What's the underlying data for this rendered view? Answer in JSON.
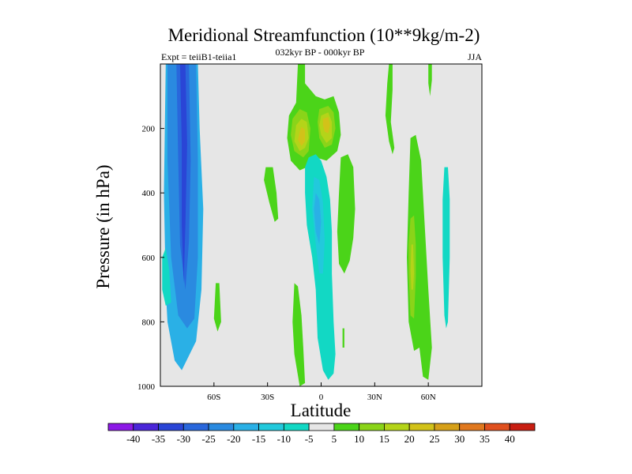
{
  "chart_data": {
    "type": "contour",
    "title": "Meridional Streamfunction (10**9kg/m-2)",
    "subtitle": "032kyr BP - 000kyr BP",
    "left_label": "Expt = teiiB1-teiia1",
    "right_label": "JJA",
    "xlabel": "Latitude",
    "ylabel": "Pressure (in hPa)",
    "xlim": [
      -90,
      90
    ],
    "ylim": [
      1000,
      0
    ],
    "x_ticks": [
      {
        "value": -60,
        "label": "60S"
      },
      {
        "value": -30,
        "label": "30S"
      },
      {
        "value": 0,
        "label": "0"
      },
      {
        "value": 30,
        "label": "30N"
      },
      {
        "value": 60,
        "label": "60N"
      }
    ],
    "y_ticks": [
      {
        "value": 200,
        "label": "200"
      },
      {
        "value": 400,
        "label": "400"
      },
      {
        "value": 600,
        "label": "600"
      },
      {
        "value": 800,
        "label": "800"
      },
      {
        "value": 1000,
        "label": "1000"
      }
    ],
    "colorbar": {
      "levels": [
        "-40",
        "-35",
        "-30",
        "-25",
        "-20",
        "-15",
        "-10",
        "-5",
        "5",
        "10",
        "15",
        "20",
        "25",
        "30",
        "35",
        "40"
      ],
      "colors": [
        "#8c19e6",
        "#4b26d9",
        "#2a45d6",
        "#2967dc",
        "#2a8ae0",
        "#2ab0e6",
        "#22c9dc",
        "#12d8c4",
        "#e6e6e6",
        "#4bd419",
        "#8ad419",
        "#b4d419",
        "#d2c219",
        "#d6a019",
        "#e0781e",
        "#e0501e",
        "#c81e12"
      ]
    },
    "regions": [
      {
        "level": -15,
        "points": [
          [
            -87,
            0
          ],
          [
            -69,
            0
          ],
          [
            -68,
            200
          ],
          [
            -66,
            450
          ],
          [
            -67,
            700
          ],
          [
            -70,
            860
          ],
          [
            -78,
            950
          ],
          [
            -82,
            920
          ],
          [
            -86,
            800
          ],
          [
            -87,
            700
          ],
          [
            -88,
            400
          ]
        ]
      },
      {
        "level": -20,
        "points": [
          [
            -86,
            0
          ],
          [
            -70,
            0
          ],
          [
            -69,
            300
          ],
          [
            -69,
            600
          ],
          [
            -71,
            790
          ],
          [
            -75,
            820
          ],
          [
            -80,
            780
          ],
          [
            -84,
            600
          ],
          [
            -86,
            300
          ]
        ]
      },
      {
        "level": -25,
        "points": [
          [
            -81,
            0
          ],
          [
            -74,
            0
          ],
          [
            -73,
            300
          ],
          [
            -74,
            550
          ],
          [
            -76,
            700
          ],
          [
            -79,
            560
          ],
          [
            -80,
            300
          ]
        ]
      },
      {
        "level": -30,
        "points": [
          [
            -79,
            0
          ],
          [
            -76,
            0
          ],
          [
            -75,
            250
          ],
          [
            -76,
            500
          ],
          [
            -77,
            680
          ],
          [
            -78,
            500
          ],
          [
            -78,
            250
          ]
        ]
      },
      {
        "level": -5,
        "points": [
          [
            -89,
            600
          ],
          [
            -87,
            570
          ],
          [
            -85,
            640
          ],
          [
            -84,
            740
          ],
          [
            -87,
            750
          ],
          [
            -89,
            700
          ]
        ]
      },
      {
        "level": 5,
        "points": [
          [
            -59,
            680
          ],
          [
            -57,
            680
          ],
          [
            -56,
            800
          ],
          [
            -58,
            830
          ],
          [
            -60,
            790
          ]
        ]
      },
      {
        "level": 5,
        "points": [
          [
            -31,
            320
          ],
          [
            -27,
            320
          ],
          [
            -25,
            400
          ],
          [
            -24,
            480
          ],
          [
            -26,
            490
          ],
          [
            -29,
            430
          ],
          [
            -32,
            360
          ]
        ]
      },
      {
        "level": 5,
        "points": [
          [
            -13,
            0
          ],
          [
            -9,
            0
          ],
          [
            -9,
            60
          ],
          [
            -3,
            100
          ],
          [
            2,
            110
          ],
          [
            7,
            100
          ],
          [
            10,
            150
          ],
          [
            11,
            220
          ],
          [
            9,
            270
          ],
          [
            3,
            300
          ],
          [
            -3,
            290
          ],
          [
            -8,
            320
          ],
          [
            -12,
            330
          ],
          [
            -17,
            300
          ],
          [
            -19,
            230
          ],
          [
            -18,
            160
          ],
          [
            -14,
            120
          ]
        ]
      },
      {
        "level": 10,
        "points": [
          [
            -12,
            140
          ],
          [
            -8,
            150
          ],
          [
            -6,
            200
          ],
          [
            -7,
            270
          ],
          [
            -10,
            290
          ],
          [
            -15,
            270
          ],
          [
            -17,
            220
          ],
          [
            -16,
            170
          ]
        ]
      },
      {
        "level": 15,
        "points": [
          [
            -11,
            170
          ],
          [
            -8,
            180
          ],
          [
            -7,
            230
          ],
          [
            -9,
            260
          ],
          [
            -12,
            270
          ],
          [
            -15,
            240
          ],
          [
            -14,
            190
          ]
        ]
      },
      {
        "level": 20,
        "points": [
          [
            -11,
            195
          ],
          [
            -9,
            205
          ],
          [
            -9,
            240
          ],
          [
            -11,
            255
          ],
          [
            -13,
            235
          ],
          [
            -12,
            210
          ]
        ]
      },
      {
        "level": 10,
        "points": [
          [
            -1,
            140
          ],
          [
            4,
            130
          ],
          [
            7,
            150
          ],
          [
            8,
            200
          ],
          [
            6,
            250
          ],
          [
            2,
            260
          ],
          [
            -1,
            230
          ],
          [
            -2,
            180
          ]
        ]
      },
      {
        "level": 15,
        "points": [
          [
            0,
            160
          ],
          [
            4,
            150
          ],
          [
            6,
            180
          ],
          [
            6,
            230
          ],
          [
            3,
            245
          ],
          [
            0,
            220
          ],
          [
            -1,
            190
          ]
        ]
      },
      {
        "level": 20,
        "points": [
          [
            1,
            170
          ],
          [
            4,
            165
          ],
          [
            5,
            190
          ],
          [
            4,
            215
          ],
          [
            2,
            210
          ],
          [
            1,
            190
          ]
        ]
      },
      {
        "level": 5,
        "points": [
          [
            11,
            290
          ],
          [
            15,
            280
          ],
          [
            18,
            320
          ],
          [
            19,
            450
          ],
          [
            18,
            540
          ],
          [
            16,
            610
          ],
          [
            13,
            650
          ],
          [
            10,
            620
          ],
          [
            9,
            520
          ],
          [
            10,
            400
          ]
        ]
      },
      {
        "level": 5,
        "points": [
          [
            -15,
            680
          ],
          [
            -13,
            690
          ],
          [
            -11,
            780
          ],
          [
            -10,
            880
          ],
          [
            -9,
            990
          ],
          [
            -12,
            1000
          ],
          [
            -15,
            900
          ],
          [
            -16,
            800
          ]
        ]
      },
      {
        "level": 5,
        "points": [
          [
            12,
            820
          ],
          [
            13,
            820
          ],
          [
            13,
            880
          ],
          [
            12,
            880
          ]
        ]
      },
      {
        "level": -5,
        "points": [
          [
            -7,
            290
          ],
          [
            -3,
            280
          ],
          [
            0,
            300
          ],
          [
            3,
            350
          ],
          [
            5,
            420
          ],
          [
            6,
            520
          ],
          [
            6,
            650
          ],
          [
            7,
            800
          ],
          [
            8,
            900
          ],
          [
            7,
            960
          ],
          [
            4,
            980
          ],
          [
            1,
            950
          ],
          [
            -2,
            850
          ],
          [
            -3,
            700
          ],
          [
            -5,
            600
          ],
          [
            -8,
            500
          ],
          [
            -9,
            400
          ],
          [
            -9,
            320
          ]
        ]
      },
      {
        "level": -10,
        "points": [
          [
            -4,
            350
          ],
          [
            -1,
            360
          ],
          [
            1,
            430
          ],
          [
            2,
            550
          ],
          [
            1,
            650
          ],
          [
            -1,
            650
          ],
          [
            -3,
            560
          ],
          [
            -5,
            450
          ]
        ]
      },
      {
        "level": -15,
        "points": [
          [
            -3,
            400
          ],
          [
            -1,
            420
          ],
          [
            0,
            490
          ],
          [
            -1,
            560
          ],
          [
            -3,
            520
          ],
          [
            -4,
            450
          ]
        ]
      },
      {
        "level": 5,
        "points": [
          [
            38,
            0
          ],
          [
            40,
            0
          ],
          [
            40,
            80
          ],
          [
            39,
            180
          ],
          [
            41,
            260
          ],
          [
            40,
            280
          ],
          [
            38,
            240
          ],
          [
            36,
            160
          ],
          [
            37,
            60
          ]
        ]
      },
      {
        "level": 5,
        "points": [
          [
            50,
            230
          ],
          [
            53,
            220
          ],
          [
            56,
            300
          ],
          [
            58,
            500
          ],
          [
            60,
            700
          ],
          [
            62,
            880
          ],
          [
            60,
            980
          ],
          [
            57,
            970
          ],
          [
            55,
            880
          ],
          [
            52,
            890
          ],
          [
            49,
            800
          ],
          [
            48,
            600
          ],
          [
            49,
            400
          ]
        ]
      },
      {
        "level": 10,
        "points": [
          [
            50,
            480
          ],
          [
            52,
            470
          ],
          [
            53,
            560
          ],
          [
            53,
            660
          ],
          [
            52,
            790
          ],
          [
            50,
            780
          ],
          [
            49,
            650
          ],
          [
            49,
            560
          ]
        ]
      },
      {
        "level": 15,
        "points": [
          [
            50.5,
            560
          ],
          [
            51.5,
            560
          ],
          [
            52,
            650
          ],
          [
            51.5,
            700
          ],
          [
            50.5,
            700
          ],
          [
            50,
            640
          ]
        ]
      },
      {
        "level": 5,
        "points": [
          [
            60,
            0
          ],
          [
            62,
            0
          ],
          [
            62,
            50
          ],
          [
            61,
            100
          ],
          [
            60,
            60
          ]
        ]
      },
      {
        "level": -5,
        "points": [
          [
            69,
            320
          ],
          [
            71,
            320
          ],
          [
            72,
            420
          ],
          [
            72,
            600
          ],
          [
            71,
            800
          ],
          [
            70,
            820
          ],
          [
            69,
            780
          ],
          [
            68,
            600
          ],
          [
            68,
            420
          ]
        ]
      }
    ]
  }
}
